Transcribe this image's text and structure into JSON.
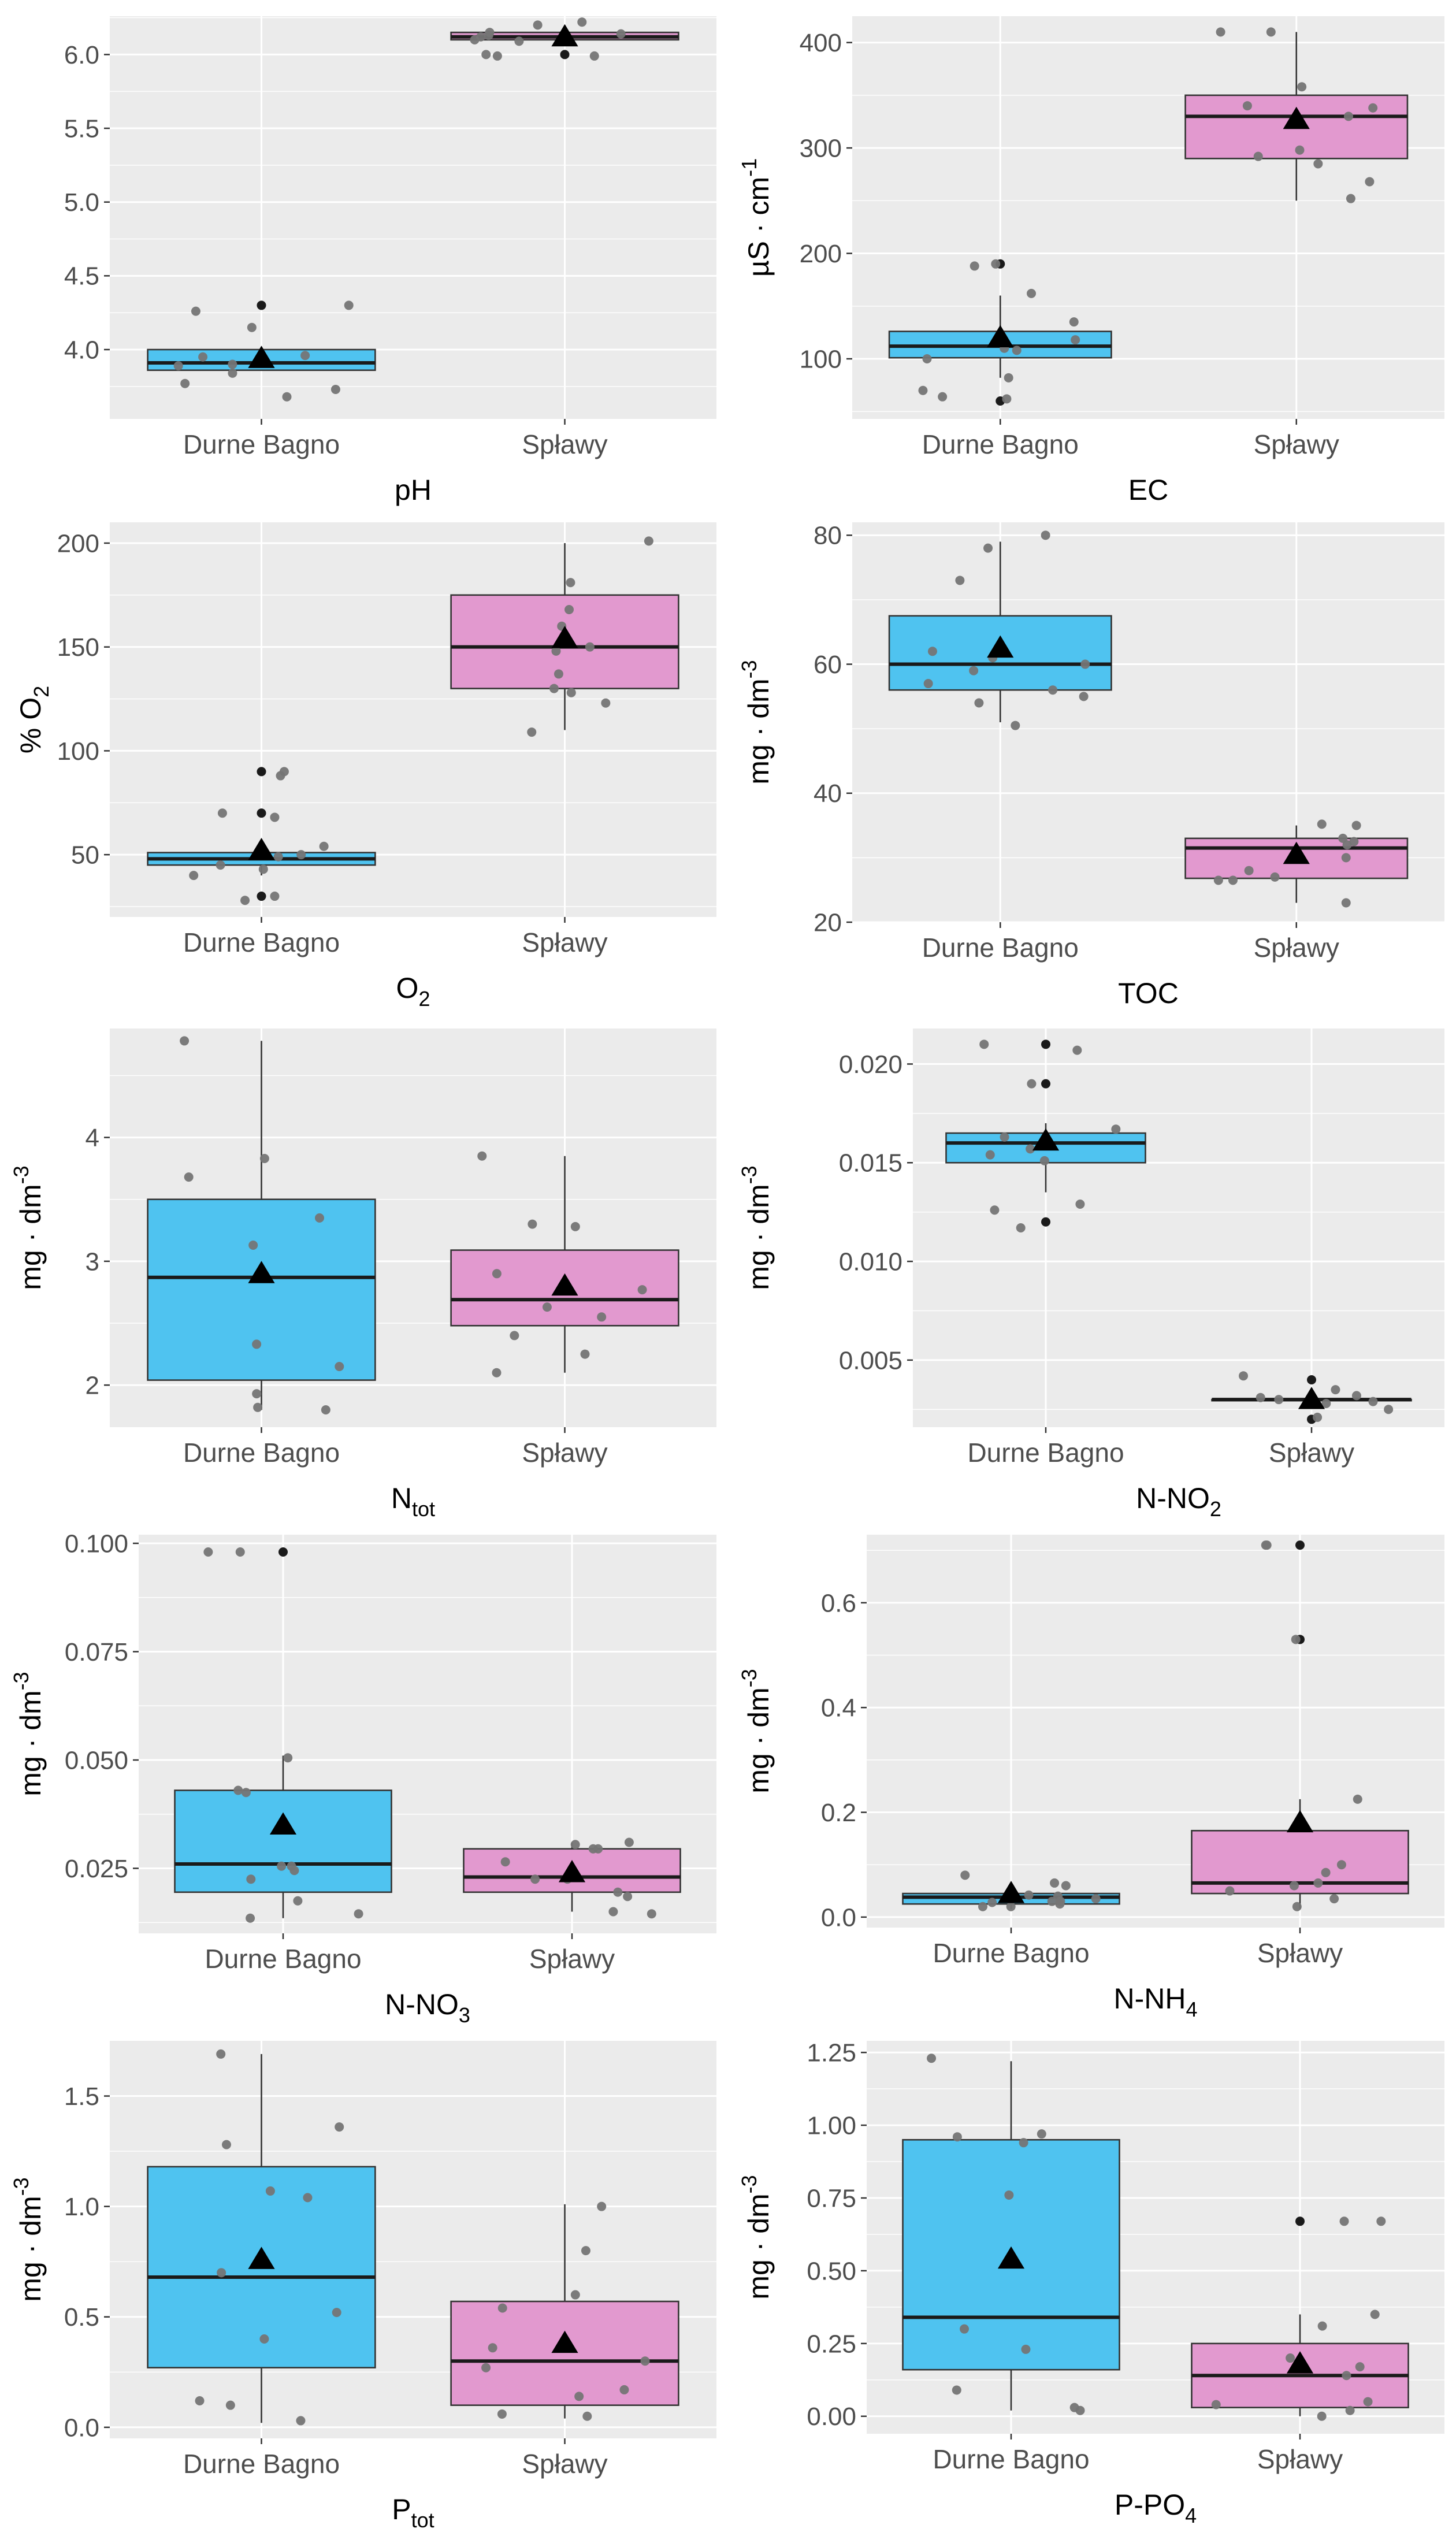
{
  "figure": {
    "colors": {
      "panel_background": "#ebebeb",
      "grid_major": "#ffffff",
      "text": "#4d4d4d",
      "title_text": "#000000",
      "box_outline": "#333333",
      "point": "#757575",
      "outlier": "#1a1a1a",
      "mean_marker": "#000000"
    },
    "group_colors": {
      "Durne Bagno": "#4fc3f0",
      "Spławy": "#e299cf"
    }
  },
  "chart_data": [
    {
      "id": "ph",
      "type": "box",
      "title": "",
      "xlabel": {
        "main": "pH"
      },
      "ylabel": {
        "main": ""
      },
      "categories": [
        "Durne Bagno",
        "Spławy"
      ],
      "ylim": [
        3.53,
        6.26
      ],
      "yticks": [
        4.0,
        4.5,
        5.0,
        5.5,
        6.0
      ],
      "ytick_labels": [
        "4.0",
        "4.5",
        "5.0",
        "5.5",
        "6.0"
      ],
      "series": [
        {
          "name": "Durne Bagno",
          "color": "#4fc3f0",
          "q1": 3.86,
          "median": 3.91,
          "q3": 4.0,
          "whisker_low": 3.86,
          "whisker_high": 4.02,
          "mean": 3.94,
          "points": [
            3.96,
            3.91,
            3.9,
            3.89,
            3.95,
            3.68,
            3.77,
            3.73,
            3.84,
            4.26,
            4.15,
            4.3
          ],
          "outliers": [
            4.3
          ]
        },
        {
          "name": "Spławy",
          "color": "#e299cf",
          "q1": 6.1,
          "median": 6.12,
          "q3": 6.15,
          "whisker_low": 6.1,
          "whisker_high": 6.15,
          "mean": 6.12,
          "points": [
            6.09,
            6.14,
            6.2,
            6.22,
            6.13,
            6.1,
            6.15,
            5.99,
            5.99,
            6.12,
            6.0
          ],
          "outliers": [
            6.0
          ]
        }
      ]
    },
    {
      "id": "ec",
      "type": "box",
      "title": "",
      "xlabel": {
        "main": "EC"
      },
      "ylabel": {
        "main": "µS · cm",
        "sup": "-1"
      },
      "categories": [
        "Durne Bagno",
        "Spławy"
      ],
      "ylim": [
        43,
        425
      ],
      "yticks": [
        100,
        200,
        300,
        400
      ],
      "ytick_labels": [
        "100",
        "200",
        "300",
        "400"
      ],
      "series": [
        {
          "name": "Durne Bagno",
          "color": "#4fc3f0",
          "q1": 101,
          "median": 112,
          "q3": 126,
          "whisker_low": 82,
          "whisker_high": 160,
          "mean": 120,
          "points": [
            188,
            162,
            135,
            108,
            100,
            82,
            70,
            118,
            110,
            62,
            64,
            190
          ],
          "outliers": [
            190,
            60
          ]
        },
        {
          "name": "Spławy",
          "color": "#e299cf",
          "q1": 290,
          "median": 330,
          "q3": 350,
          "whisker_low": 250,
          "whisker_high": 410,
          "mean": 327,
          "points": [
            410,
            358,
            340,
            298,
            338,
            252,
            292,
            285,
            330,
            268,
            410
          ],
          "outliers": []
        }
      ]
    },
    {
      "id": "o2",
      "type": "box",
      "title": "",
      "xlabel": {
        "main": "O",
        "sub": "2"
      },
      "ylabel": {
        "main": "% O",
        "sub": "2"
      },
      "categories": [
        "Durne Bagno",
        "Spławy"
      ],
      "ylim": [
        20,
        210
      ],
      "yticks": [
        50,
        100,
        150,
        200
      ],
      "ytick_labels": [
        "50",
        "100",
        "150",
        "200"
      ],
      "series": [
        {
          "name": "Durne Bagno",
          "color": "#4fc3f0",
          "q1": 45,
          "median": 48,
          "q3": 51,
          "whisker_low": 40,
          "whisker_high": 55,
          "mean": 52,
          "points": [
            50,
            40,
            28,
            54,
            49,
            45,
            68,
            43,
            30,
            88,
            70,
            90
          ],
          "outliers": [
            90,
            70,
            30
          ]
        },
        {
          "name": "Spławy",
          "color": "#e299cf",
          "q1": 130,
          "median": 150,
          "q3": 175,
          "whisker_low": 110,
          "whisker_high": 200,
          "mean": 154,
          "points": [
            201,
            123,
            137,
            130,
            168,
            160,
            148,
            109,
            181,
            128,
            150
          ],
          "outliers": []
        }
      ]
    },
    {
      "id": "toc",
      "type": "box",
      "title": "",
      "xlabel": {
        "main": "TOC"
      },
      "ylabel": {
        "main": "mg · dm",
        "sup": "-3"
      },
      "categories": [
        "Durne Bagno",
        "Spławy"
      ],
      "ylim": [
        20,
        82
      ],
      "yticks": [
        20,
        40,
        60,
        80
      ],
      "ytick_labels": [
        "20",
        "40",
        "60",
        "80"
      ],
      "series": [
        {
          "name": "Durne Bagno",
          "color": "#4fc3f0",
          "q1": 56,
          "median": 60,
          "q3": 67.5,
          "whisker_low": 51,
          "whisker_high": 79,
          "mean": 62.5,
          "points": [
            78,
            62,
            56,
            54,
            61,
            57,
            60,
            80,
            73,
            50.5,
            55,
            59
          ],
          "outliers": []
        },
        {
          "name": "Spławy",
          "color": "#e299cf",
          "q1": 26.8,
          "median": 31.5,
          "q3": 33,
          "whisker_low": 23,
          "whisker_high": 35,
          "mean": 30.5,
          "points": [
            32.5,
            26.5,
            27,
            23,
            35,
            33,
            32,
            28,
            35.2,
            26.5,
            30
          ],
          "outliers": []
        }
      ]
    },
    {
      "id": "ntot",
      "type": "box",
      "title": "",
      "xlabel": {
        "main": "N",
        "sub": "tot"
      },
      "ylabel": {
        "main": "mg · dm",
        "sup": "-3"
      },
      "categories": [
        "Durne Bagno",
        "Spławy"
      ],
      "ylim": [
        1.66,
        4.88
      ],
      "yticks": [
        2,
        3,
        4
      ],
      "ytick_labels": [
        "2",
        "3",
        "4"
      ],
      "series": [
        {
          "name": "Durne Bagno",
          "color": "#4fc3f0",
          "q1": 2.04,
          "median": 2.87,
          "q3": 3.5,
          "whisker_low": 1.8,
          "whisker_high": 4.78,
          "mean": 2.9,
          "points": [
            3.35,
            3.68,
            2.33,
            1.8,
            1.82,
            1.93,
            3.83,
            3.13,
            4.78,
            2.15,
            2.88
          ],
          "outliers": []
        },
        {
          "name": "Spławy",
          "color": "#e299cf",
          "q1": 2.48,
          "median": 2.69,
          "q3": 3.09,
          "whisker_low": 2.1,
          "whisker_high": 3.85,
          "mean": 2.8,
          "points": [
            2.77,
            2.25,
            2.63,
            2.1,
            3.85,
            3.3,
            2.9,
            3.28,
            2.55,
            2.4
          ],
          "outliers": []
        }
      ]
    },
    {
      "id": "nno2",
      "type": "box",
      "title": "",
      "xlabel": {
        "main": "N-NO",
        "sub": "2"
      },
      "ylabel": {
        "main": "mg · dm",
        "sup": "-3"
      },
      "categories": [
        "Durne Bagno",
        "Spławy"
      ],
      "ylim": [
        0.0016,
        0.0218
      ],
      "yticks": [
        0.005,
        0.01,
        0.015,
        0.02
      ],
      "ytick_labels": [
        "0.005",
        "0.010",
        "0.015",
        "0.020"
      ],
      "series": [
        {
          "name": "Durne Bagno",
          "color": "#4fc3f0",
          "q1": 0.015,
          "median": 0.016,
          "q3": 0.0165,
          "whisker_low": 0.0135,
          "whisker_high": 0.017,
          "mean": 0.0161,
          "points": [
            0.0207,
            0.0117,
            0.0126,
            0.0151,
            0.0157,
            0.0163,
            0.0167,
            0.019,
            0.0129,
            0.0154,
            0.021
          ],
          "outliers": [
            0.021,
            0.019,
            0.012
          ]
        },
        {
          "name": "Spławy",
          "color": "#e299cf",
          "q1": 0.003,
          "median": 0.003,
          "q3": 0.003,
          "whisker_low": 0.003,
          "whisker_high": 0.003,
          "mean": 0.003,
          "points": [
            0.0042,
            0.0028,
            0.003,
            0.0031,
            0.0032,
            0.0029,
            0.0035,
            0.0021,
            0.0025
          ],
          "outliers": [
            0.004,
            0.002
          ]
        }
      ]
    },
    {
      "id": "nno3",
      "type": "box",
      "title": "",
      "xlabel": {
        "main": "N-NO",
        "sub": "3"
      },
      "ylabel": {
        "main": "mg · dm",
        "sup": "-3"
      },
      "categories": [
        "Durne Bagno",
        "Spławy"
      ],
      "ylim": [
        0.01,
        0.102
      ],
      "yticks": [
        0.025,
        0.05,
        0.075,
        0.1
      ],
      "ytick_labels": [
        "0.025",
        "0.050",
        "0.075",
        "0.100"
      ],
      "series": [
        {
          "name": "Durne Bagno",
          "color": "#4fc3f0",
          "q1": 0.0195,
          "median": 0.026,
          "q3": 0.043,
          "whisker_low": 0.0135,
          "whisker_high": 0.051,
          "mean": 0.035,
          "points": [
            0.098,
            0.0505,
            0.0425,
            0.0255,
            0.043,
            0.0245,
            0.0225,
            0.0175,
            0.0135,
            0.0145,
            0.0255,
            0.098
          ],
          "outliers": [
            0.098
          ]
        },
        {
          "name": "Spławy",
          "color": "#e299cf",
          "q1": 0.0195,
          "median": 0.023,
          "q3": 0.0295,
          "whisker_low": 0.015,
          "whisker_high": 0.031,
          "mean": 0.024,
          "points": [
            0.031,
            0.0225,
            0.0195,
            0.015,
            0.0265,
            0.0295,
            0.0185,
            0.0305,
            0.0145,
            0.0295,
            0.0225
          ],
          "outliers": []
        }
      ]
    },
    {
      "id": "nnh4",
      "type": "box",
      "title": "",
      "xlabel": {
        "main": "N-NH",
        "sub": "4"
      },
      "ylabel": {
        "main": "mg · dm",
        "sup": "-3"
      },
      "categories": [
        "Durne Bagno",
        "Spławy"
      ],
      "ylim": [
        -0.02,
        0.73
      ],
      "yticks": [
        0.0,
        0.2,
        0.4,
        0.6
      ],
      "ytick_labels": [
        "0.0",
        "0.2",
        "0.4",
        "0.6"
      ],
      "series": [
        {
          "name": "Durne Bagno",
          "color": "#4fc3f0",
          "q1": 0.025,
          "median": 0.038,
          "q3": 0.045,
          "whisker_low": 0.015,
          "whisker_high": 0.06,
          "mean": 0.045,
          "points": [
            0.042,
            0.03,
            0.025,
            0.02,
            0.06,
            0.08,
            0.035,
            0.065,
            0.04,
            0.028,
            0.02,
            0.03
          ],
          "outliers": []
        },
        {
          "name": "Spławy",
          "color": "#e299cf",
          "q1": 0.045,
          "median": 0.065,
          "q3": 0.165,
          "whisker_low": 0.015,
          "whisker_high": 0.225,
          "mean": 0.18,
          "points": [
            0.71,
            0.085,
            0.06,
            0.02,
            0.1,
            0.035,
            0.53,
            0.225,
            0.065,
            0.05,
            0.71
          ],
          "outliers": [
            0.71,
            0.53
          ]
        }
      ]
    },
    {
      "id": "ptot",
      "type": "box",
      "title": "",
      "xlabel": {
        "main": "P",
        "sub": "tot"
      },
      "ylabel": {
        "main": "mg · dm",
        "sup": "-3"
      },
      "categories": [
        "Durne Bagno",
        "Spławy"
      ],
      "ylim": [
        -0.05,
        1.75
      ],
      "yticks": [
        0.0,
        0.5,
        1.0,
        1.5
      ],
      "ytick_labels": [
        "0.0",
        "0.5",
        "1.0",
        "1.5"
      ],
      "series": [
        {
          "name": "Durne Bagno",
          "color": "#4fc3f0",
          "q1": 0.27,
          "median": 0.68,
          "q3": 1.18,
          "whisker_low": 0.02,
          "whisker_high": 1.69,
          "mean": 0.76,
          "points": [
            1.36,
            1.07,
            0.4,
            0.1,
            0.12,
            1.69,
            0.7,
            1.28,
            0.03,
            1.04,
            0.52
          ],
          "outliers": []
        },
        {
          "name": "Spławy",
          "color": "#e299cf",
          "q1": 0.1,
          "median": 0.3,
          "q3": 0.57,
          "whisker_low": 0.04,
          "whisker_high": 1.01,
          "mean": 0.38,
          "points": [
            0.54,
            0.06,
            0.14,
            0.05,
            0.27,
            1.0,
            0.8,
            0.6,
            0.17,
            0.36,
            0.3
          ],
          "outliers": []
        }
      ]
    },
    {
      "id": "ppo4",
      "type": "box",
      "title": "",
      "xlabel": {
        "main": "P-PO",
        "sub": "4"
      },
      "ylabel": {
        "main": "mg · dm",
        "sup": "-3"
      },
      "categories": [
        "Durne Bagno",
        "Spławy"
      ],
      "ylim": [
        -0.06,
        1.29
      ],
      "yticks": [
        0.0,
        0.25,
        0.5,
        0.75,
        1.0,
        1.25
      ],
      "ytick_labels": [
        "0.00",
        "0.25",
        "0.50",
        "0.75",
        "1.00",
        "1.25"
      ],
      "series": [
        {
          "name": "Durne Bagno",
          "color": "#4fc3f0",
          "q1": 0.16,
          "median": 0.34,
          "q3": 0.95,
          "whisker_low": 0.02,
          "whisker_high": 1.22,
          "mean": 0.54,
          "points": [
            0.94,
            0.03,
            1.23,
            0.76,
            0.3,
            0.23,
            0.96,
            0.02,
            0.97,
            0.09
          ],
          "outliers": []
        },
        {
          "name": "Spławy",
          "color": "#e299cf",
          "q1": 0.03,
          "median": 0.14,
          "q3": 0.25,
          "whisker_low": 0.0,
          "whisker_high": 0.35,
          "mean": 0.18,
          "points": [
            0.67,
            0.02,
            0.14,
            0.31,
            0.35,
            0.17,
            0.05,
            0.0,
            0.2,
            0.04,
            0.67
          ],
          "outliers": [
            0.67
          ]
        }
      ]
    }
  ]
}
